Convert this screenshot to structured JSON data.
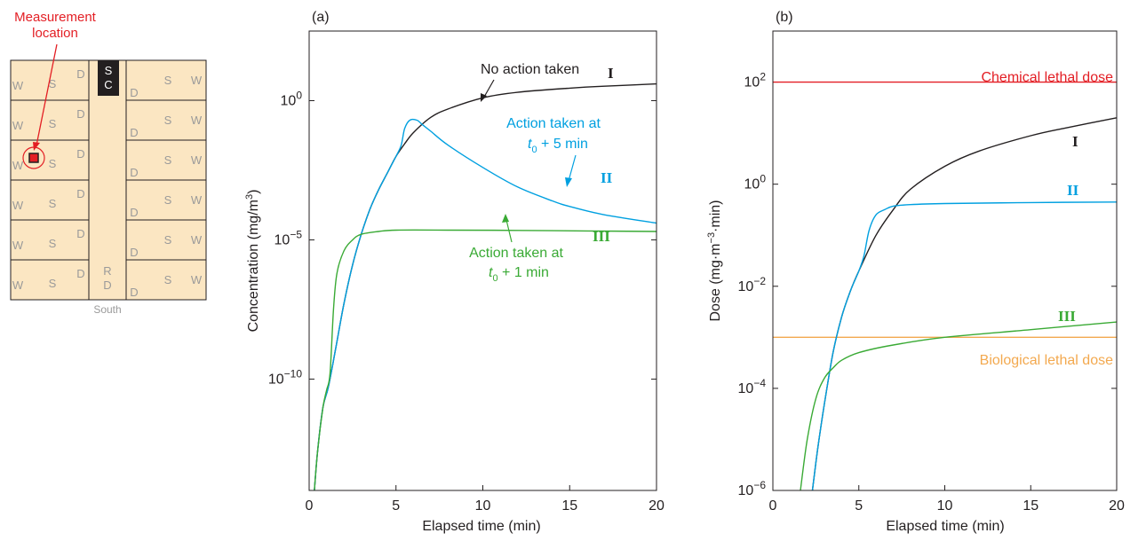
{
  "floorplan": {
    "title_line1": "Measurement",
    "title_line2": "location",
    "south_label": "South",
    "sc_label": [
      "S",
      "C"
    ],
    "rd_label": [
      "R",
      "D"
    ],
    "left_rows": [
      {
        "w": "W",
        "s": "S",
        "d": "D"
      },
      {
        "w": "W",
        "s": "S",
        "d": "D"
      },
      {
        "w": "W",
        "s": "S",
        "d": "D"
      },
      {
        "w": "W",
        "s": "S",
        "d": "D"
      },
      {
        "w": "W",
        "s": "S",
        "d": "D"
      },
      {
        "w": "W",
        "s": "S",
        "d": "D"
      }
    ],
    "right_rows": [
      {
        "w": "W",
        "s": "S",
        "d": "D"
      },
      {
        "w": "W",
        "s": "S",
        "d": "D"
      },
      {
        "w": "W",
        "s": "S",
        "d": "D"
      },
      {
        "w": "W",
        "s": "S",
        "d": "D"
      },
      {
        "w": "W",
        "s": "S",
        "d": "D"
      },
      {
        "w": "W",
        "s": "S",
        "d": "D"
      }
    ],
    "colors": {
      "room": "#fbe6c2",
      "corridor": "#fbe6c2",
      "marker": "#e31e24",
      "text": "#9a9a9a",
      "black": "#231f20"
    }
  },
  "chart_data": [
    {
      "type": "line",
      "panel_label": "(a)",
      "xlabel": "Elapsed time (min)",
      "ylabel": "Concentration (mg/m3)",
      "ylabel_parts": [
        "Concentration (mg/m",
        "3",
        ")"
      ],
      "yscale": "log",
      "xlim": [
        0,
        20
      ],
      "ylim_log10": [
        -14,
        2.5
      ],
      "x_ticks": [
        "0",
        "5",
        "10",
        "15",
        "20"
      ],
      "y_ticks": [
        {
          "mantissa": "10",
          "exp": "0",
          "log10": 0
        },
        {
          "mantissa": "10",
          "exp": "−5",
          "log10": -5
        },
        {
          "mantissa": "10",
          "exp": "−10",
          "log10": -10
        }
      ],
      "series": [
        {
          "name": "I",
          "color": "#231f20",
          "points": [
            [
              0.3,
              -14
            ],
            [
              0.5,
              -12.5
            ],
            [
              0.8,
              -11
            ],
            [
              1.1,
              -10.3
            ],
            [
              1.5,
              -9
            ],
            [
              2.0,
              -7.3
            ],
            [
              2.5,
              -5.9
            ],
            [
              3.0,
              -4.8
            ],
            [
              3.5,
              -3.9
            ],
            [
              4.0,
              -3.2
            ],
            [
              4.5,
              -2.6
            ],
            [
              5.0,
              -2.0
            ],
            [
              5.5,
              -1.55
            ],
            [
              6.0,
              -1.15
            ],
            [
              7.0,
              -0.6
            ],
            [
              8.0,
              -0.3
            ],
            [
              10.0,
              0.1
            ],
            [
              12.0,
              0.3
            ],
            [
              15.0,
              0.45
            ],
            [
              17.0,
              0.52
            ],
            [
              20.0,
              0.6
            ]
          ]
        },
        {
          "name": "II",
          "color": "#00a0e0",
          "points": [
            [
              0.3,
              -14
            ],
            [
              0.5,
              -12.5
            ],
            [
              0.8,
              -11
            ],
            [
              1.1,
              -10.3
            ],
            [
              1.5,
              -9
            ],
            [
              2.0,
              -7.3
            ],
            [
              2.5,
              -5.9
            ],
            [
              3.0,
              -4.8
            ],
            [
              3.5,
              -3.9
            ],
            [
              4.0,
              -3.2
            ],
            [
              4.5,
              -2.6
            ],
            [
              5.0,
              -2.0
            ],
            [
              5.3,
              -1.6
            ],
            [
              5.5,
              -1.0
            ],
            [
              5.8,
              -0.7
            ],
            [
              6.2,
              -0.7
            ],
            [
              6.5,
              -0.85
            ],
            [
              7.0,
              -1.1
            ],
            [
              8.0,
              -1.6
            ],
            [
              10.0,
              -2.4
            ],
            [
              12.0,
              -3.1
            ],
            [
              14.0,
              -3.6
            ],
            [
              15.0,
              -3.8
            ],
            [
              17.0,
              -4.1
            ],
            [
              20.0,
              -4.4
            ]
          ]
        },
        {
          "name": "III",
          "color": "#3aaa35",
          "points": [
            [
              0.3,
              -14
            ],
            [
              0.5,
              -12.5
            ],
            [
              0.8,
              -11
            ],
            [
              1.0,
              -10.4
            ],
            [
              1.2,
              -9.8
            ],
            [
              1.4,
              -7.5
            ],
            [
              1.6,
              -6.2
            ],
            [
              2.0,
              -5.4
            ],
            [
              2.5,
              -5.0
            ],
            [
              3.0,
              -4.8
            ],
            [
              4.0,
              -4.7
            ],
            [
              5.0,
              -4.65
            ],
            [
              8.0,
              -4.65
            ],
            [
              12.0,
              -4.66
            ],
            [
              16.0,
              -4.68
            ],
            [
              20.0,
              -4.7
            ]
          ]
        }
      ],
      "annotations": {
        "I_label": "I",
        "II_label": "II",
        "III_label": "III",
        "no_action": "No action taken",
        "action5_line1": "Action taken at",
        "action5_line2_t": "t",
        "action5_line2_sub": "0",
        "action5_line2_rest": " + 5 min",
        "action1_line1": "Action taken at",
        "action1_line2_t": "t",
        "action1_line2_sub": "0",
        "action1_line2_rest": " + 1 min"
      }
    },
    {
      "type": "line",
      "panel_label": "(b)",
      "xlabel": "Elapsed time (min)",
      "ylabel": "Dose (mg·m−3·min)",
      "ylabel_parts": [
        "Dose (mg·m",
        "−3",
        "·min)"
      ],
      "yscale": "log",
      "xlim": [
        0,
        20
      ],
      "ylim_log10": [
        -6,
        3
      ],
      "x_ticks": [
        "0",
        "5",
        "10",
        "15",
        "20"
      ],
      "y_ticks": [
        {
          "mantissa": "10",
          "exp": "2",
          "log10": 2
        },
        {
          "mantissa": "10",
          "exp": "0",
          "log10": 0
        },
        {
          "mantissa": "10",
          "exp": "−2",
          "log10": -2
        },
        {
          "mantissa": "10",
          "exp": "−4",
          "log10": -4
        },
        {
          "mantissa": "10",
          "exp": "−6",
          "log10": -6
        }
      ],
      "thresholds": [
        {
          "name": "Chemical lethal dose",
          "log10": 2,
          "color": "#e31e24"
        },
        {
          "name": "Biological lethal dose",
          "log10": -3,
          "color": "#f3a94f"
        }
      ],
      "series": [
        {
          "name": "I",
          "color": "#231f20",
          "points": [
            [
              2.3,
              -6
            ],
            [
              2.6,
              -5.2
            ],
            [
              3.0,
              -4.3
            ],
            [
              3.5,
              -3.3
            ],
            [
              4.0,
              -2.6
            ],
            [
              4.5,
              -2.1
            ],
            [
              5.0,
              -1.7
            ],
            [
              6.0,
              -1.0
            ],
            [
              7.0,
              -0.5
            ],
            [
              8.0,
              -0.1
            ],
            [
              10.0,
              0.35
            ],
            [
              12.0,
              0.65
            ],
            [
              15.0,
              0.95
            ],
            [
              17.0,
              1.1
            ],
            [
              20.0,
              1.3
            ]
          ]
        },
        {
          "name": "II",
          "color": "#00a0e0",
          "points": [
            [
              2.3,
              -6
            ],
            [
              2.6,
              -5.2
            ],
            [
              3.0,
              -4.3
            ],
            [
              3.5,
              -3.3
            ],
            [
              4.0,
              -2.6
            ],
            [
              4.5,
              -2.1
            ],
            [
              5.0,
              -1.7
            ],
            [
              5.3,
              -1.4
            ],
            [
              5.6,
              -0.9
            ],
            [
              6.0,
              -0.6
            ],
            [
              6.5,
              -0.5
            ],
            [
              7.0,
              -0.43
            ],
            [
              8.0,
              -0.4
            ],
            [
              10.0,
              -0.38
            ],
            [
              15.0,
              -0.36
            ],
            [
              20.0,
              -0.35
            ]
          ]
        },
        {
          "name": "III",
          "color": "#3aaa35",
          "points": [
            [
              1.6,
              -6
            ],
            [
              2.0,
              -5.0
            ],
            [
              2.5,
              -4.2
            ],
            [
              3.0,
              -3.8
            ],
            [
              3.5,
              -3.6
            ],
            [
              4.0,
              -3.45
            ],
            [
              5.0,
              -3.3
            ],
            [
              7.0,
              -3.15
            ],
            [
              10.0,
              -3.0
            ],
            [
              15.0,
              -2.85
            ],
            [
              20.0,
              -2.7
            ]
          ]
        }
      ],
      "annotations": {
        "I_label": "I",
        "II_label": "II",
        "III_label": "III"
      }
    }
  ]
}
